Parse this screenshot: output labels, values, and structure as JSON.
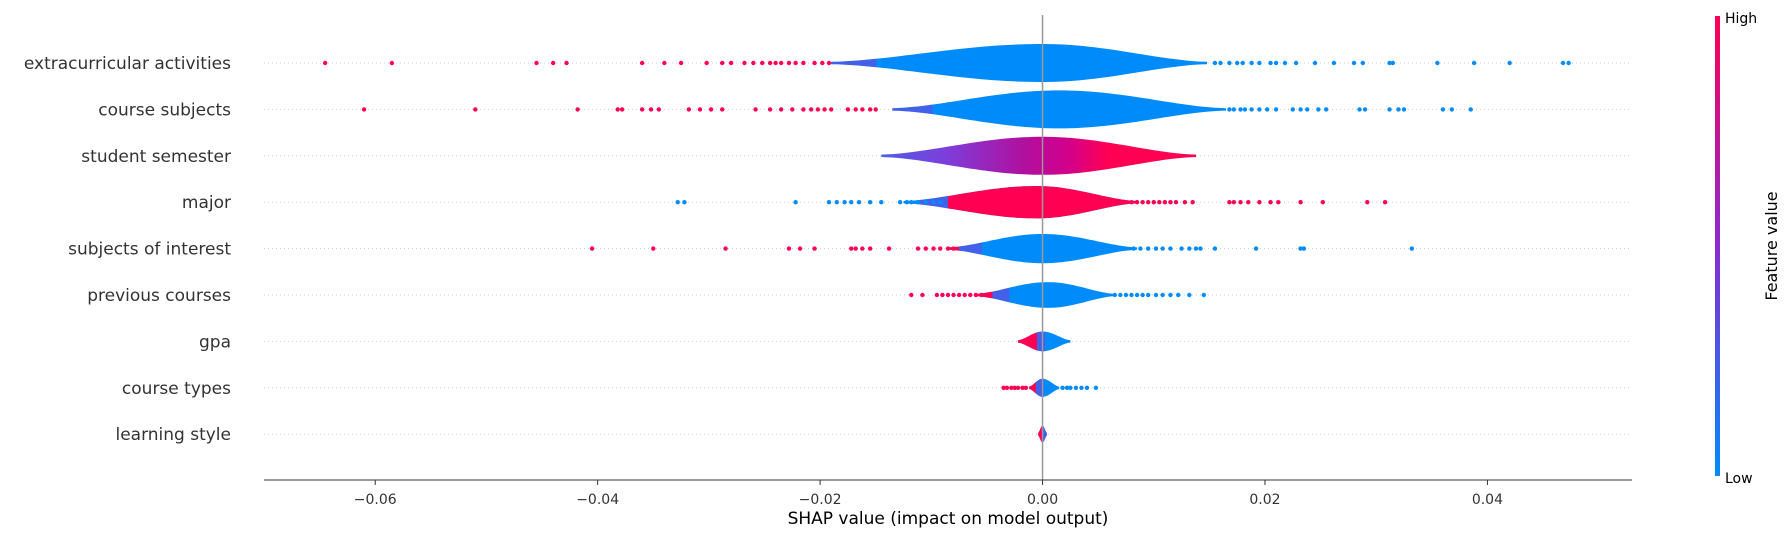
{
  "chart_data": {
    "type": "violin",
    "xlabel": "SHAP value (impact on model output)",
    "xlim": [
      -0.07,
      0.053
    ],
    "xticks": [
      -0.06,
      -0.04,
      -0.02,
      0.0,
      0.02,
      0.04
    ],
    "xtick_labels": [
      "−0.06",
      "−0.04",
      "−0.02",
      "0.00",
      "0.02",
      "0.04"
    ],
    "colorbar": {
      "title": "Feature value",
      "high_label": "High",
      "low_label": "Low",
      "low_color": "#008bfb",
      "mid_color": "#8a2bd0",
      "high_color": "#ff0052"
    },
    "grid": "horizontal dotted",
    "features": [
      {
        "name": "extracurricular activities",
        "violin": {
          "min": -0.019,
          "max": 0.0148,
          "peak": 0.0
        },
        "hi_side": "left",
        "split": -0.019,
        "points_high": [
          -0.0645,
          -0.0585,
          -0.0455,
          -0.044,
          -0.0428,
          -0.036,
          -0.034,
          -0.0325,
          -0.0302,
          -0.0288,
          -0.028,
          -0.0268,
          -0.026,
          -0.0252,
          -0.0245,
          -0.024,
          -0.0235,
          -0.0228,
          -0.0222,
          -0.0215,
          -0.0205,
          -0.0198,
          -0.0192
        ],
        "points_low": [
          0.0155,
          0.016,
          0.0168,
          0.0175,
          0.018,
          0.0188,
          0.0195,
          0.0205,
          0.021,
          0.0218,
          0.0228,
          0.0245,
          0.0262,
          0.028,
          0.0288,
          0.0312,
          0.0315,
          0.0355,
          0.0388,
          0.042,
          0.0468,
          0.0473
        ]
      },
      {
        "name": "course subjects",
        "violin": {
          "min": -0.0135,
          "max": 0.0165,
          "peak": 0.0015
        },
        "hi_side": "left",
        "split": -0.0135,
        "points_high": [
          -0.061,
          -0.051,
          -0.0418,
          -0.0382,
          -0.0378,
          -0.036,
          -0.0352,
          -0.0345,
          -0.0318,
          -0.0308,
          -0.0298,
          -0.0288,
          -0.0258,
          -0.0245,
          -0.0235,
          -0.0225,
          -0.0215,
          -0.0208,
          -0.0202,
          -0.0196,
          -0.019,
          -0.0175,
          -0.0168,
          -0.0162,
          -0.0155,
          -0.015
        ],
        "points_low": [
          0.0168,
          0.0172,
          0.0178,
          0.0182,
          0.0188,
          0.0195,
          0.0202,
          0.021,
          0.0225,
          0.0232,
          0.0238,
          0.0248,
          0.0255,
          0.0285,
          0.029,
          0.0312,
          0.032,
          0.0325,
          0.036,
          0.0368,
          0.0385
        ]
      },
      {
        "name": "student semester",
        "violin": {
          "min": -0.0145,
          "max": 0.0138,
          "peak": 0.0
        },
        "gradient": true,
        "points_high": [],
        "points_low": []
      },
      {
        "name": "major",
        "violin": {
          "min": -0.0125,
          "max": 0.0085,
          "peak": -0.0005
        },
        "hi_side": "right",
        "split": -0.0085,
        "points_high": [
          0.007,
          0.008,
          0.0085,
          0.009,
          0.0095,
          0.01,
          0.0105,
          0.011,
          0.0115,
          0.012,
          0.0128,
          0.0135,
          0.0168,
          0.0172,
          0.0178,
          0.0185,
          0.0195,
          0.0205,
          0.0212,
          0.0232,
          0.0252,
          0.0292,
          0.0308
        ],
        "points_low": [
          -0.0328,
          -0.0322,
          -0.0222,
          -0.0192,
          -0.0185,
          -0.0178,
          -0.0172,
          -0.0165,
          -0.0155,
          -0.0145,
          -0.0128,
          -0.0122,
          -0.0118,
          -0.0112,
          -0.0105,
          -0.0098,
          -0.0092
        ]
      },
      {
        "name": "subjects of interest",
        "violin": {
          "min": -0.0085,
          "max": 0.0085,
          "peak": 0.0
        },
        "hi_side": "left",
        "split": -0.0075,
        "points_high": [
          -0.0405,
          -0.035,
          -0.0285,
          -0.0228,
          -0.0218,
          -0.0205,
          -0.0172,
          -0.0168,
          -0.0162,
          -0.0155,
          -0.0138,
          -0.0112,
          -0.0105,
          -0.0098,
          -0.0092,
          -0.0085,
          -0.008
        ],
        "points_low": [
          0.0082,
          0.0088,
          0.0095,
          0.0102,
          0.0108,
          0.0115,
          0.0125,
          0.0132,
          0.0138,
          0.0142,
          0.0155,
          0.0192,
          0.0232,
          0.0235,
          0.0332
        ]
      },
      {
        "name": "previous courses",
        "violin": {
          "min": -0.006,
          "max": 0.0065,
          "peak": 0.0005
        },
        "hi_side": "left",
        "split": -0.0045,
        "points_high": [
          -0.0118,
          -0.0108,
          -0.0095,
          -0.009,
          -0.0085,
          -0.008,
          -0.0075,
          -0.007,
          -0.0065,
          -0.006,
          -0.0055
        ],
        "points_low": [
          0.0065,
          0.007,
          0.0075,
          0.008,
          0.0085,
          0.009,
          0.0095,
          0.0102,
          0.0108,
          0.0115,
          0.0122,
          0.0132,
          0.0145
        ]
      },
      {
        "name": "gpa",
        "violin": {
          "min": -0.0022,
          "max": 0.0025,
          "peak": 0.0
        },
        "hi_side": "left",
        "split": -0.0005,
        "points_high": [],
        "points_low": []
      },
      {
        "name": "course types",
        "violin": {
          "min": -0.0012,
          "max": 0.0015,
          "peak": 0.0
        },
        "hi_side": "left",
        "split": -0.0006,
        "points_high": [
          -0.0035,
          -0.0032,
          -0.0028,
          -0.0025,
          -0.0022,
          -0.0018,
          -0.0015
        ],
        "points_low": [
          0.0018,
          0.0022,
          0.0025,
          0.003,
          0.0035,
          0.004,
          0.0048
        ]
      },
      {
        "name": "learning style",
        "violin": {
          "min": -0.0004,
          "max": 0.0004,
          "peak": 0.0
        },
        "hi_side": "left",
        "split": 0.0,
        "points_high": [],
        "points_low": []
      }
    ]
  }
}
